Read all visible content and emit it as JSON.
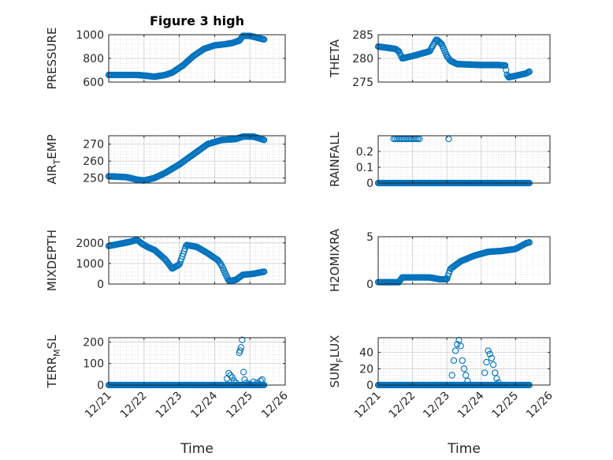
{
  "figure": {
    "title": "Figure 3 high"
  },
  "style": {
    "marker_color": "#0072BD",
    "axis_color": "#262626",
    "grid_color": "#dcdcdc",
    "background": "#ffffff"
  },
  "chart_data": [
    {
      "type": "scatter",
      "id": "pressure",
      "col": 0,
      "row": 0,
      "ylabel_parts": [
        {
          "t": "PRESSURE"
        }
      ],
      "title": "Figure 3 high",
      "xlim": [
        0,
        5
      ],
      "ylim": [
        600,
        1000
      ],
      "yticks": [
        600,
        800,
        1000
      ],
      "ytick_labels": [
        "600",
        "800",
        "1000"
      ],
      "x_anchors": [
        0,
        0.8,
        1.0,
        1.3,
        1.6,
        1.8,
        2.1,
        2.4,
        2.7,
        3.0,
        3.3,
        3.5,
        3.7,
        3.8,
        4.0,
        4.2,
        4.4
      ],
      "y_anchors": [
        660,
        660,
        655,
        645,
        660,
        680,
        740,
        820,
        880,
        910,
        920,
        930,
        950,
        990,
        990,
        975,
        960
      ],
      "marker": "circle",
      "n_points": 170
    },
    {
      "type": "scatter",
      "id": "theta",
      "col": 1,
      "row": 0,
      "ylabel_parts": [
        {
          "t": "THETA"
        }
      ],
      "xlim": [
        0,
        5
      ],
      "ylim": [
        275,
        285
      ],
      "yticks": [
        275,
        280,
        285
      ],
      "ytick_labels": [
        "275",
        "280",
        "285"
      ],
      "x_anchors": [
        0,
        0.5,
        0.6,
        0.7,
        1.0,
        1.5,
        1.65,
        1.7,
        1.85,
        2.0,
        2.1,
        2.3,
        3.0,
        3.5,
        3.7,
        3.75,
        3.8,
        4.3,
        4.4
      ],
      "y_anchors": [
        282.5,
        282,
        281.5,
        280,
        280.5,
        281.5,
        283.5,
        284,
        283,
        280.5,
        279.5,
        278.8,
        278.6,
        278.6,
        278.5,
        276.5,
        276.0,
        276.8,
        277.2
      ],
      "marker": "circle",
      "n_points": 170
    },
    {
      "type": "scatter",
      "id": "air_temp",
      "col": 0,
      "row": 1,
      "ylabel_parts": [
        {
          "t": "AIR"
        },
        {
          "t": "T",
          "sub": true
        },
        {
          "t": "EMP"
        }
      ],
      "xlim": [
        0,
        5
      ],
      "ylim": [
        247,
        275
      ],
      "yticks": [
        250,
        260,
        270
      ],
      "ytick_labels": [
        "250",
        "260",
        "270"
      ],
      "x_anchors": [
        0,
        0.5,
        0.8,
        1.0,
        1.3,
        1.6,
        2.0,
        2.4,
        2.8,
        3.2,
        3.6,
        3.8,
        4.1,
        4.4
      ],
      "y_anchors": [
        251,
        250.5,
        249,
        248.5,
        250,
        253,
        258,
        264,
        270,
        272.5,
        273,
        274.5,
        274.5,
        272.5
      ],
      "marker": "circle",
      "n_points": 170
    },
    {
      "type": "scatter",
      "id": "rainfall",
      "col": 1,
      "row": 1,
      "ylabel_parts": [
        {
          "t": "RAINFALL"
        }
      ],
      "xlim": [
        0,
        5
      ],
      "ylim": [
        0,
        0.3
      ],
      "yticks": [
        0,
        0.1,
        0.2
      ],
      "ytick_labels": [
        "0",
        "0.1",
        "0.2"
      ],
      "x_anchors": [
        0,
        4.4
      ],
      "y_anchors": [
        0,
        0
      ],
      "extra_x": [
        0.45,
        0.5,
        0.55,
        0.6,
        0.65,
        0.7,
        0.75,
        0.8,
        0.85,
        0.9,
        0.95,
        1.0,
        1.05,
        1.1,
        1.15,
        1.2,
        2.05
      ],
      "extra_y": [
        0.28,
        0.28,
        0.28,
        0.28,
        0.28,
        0.28,
        0.28,
        0.28,
        0.28,
        0.28,
        0.28,
        0.28,
        0.28,
        0.28,
        0.28,
        0.28,
        0.28
      ],
      "marker": "circle",
      "n_points": 170
    },
    {
      "type": "scatter",
      "id": "mixdepth",
      "col": 0,
      "row": 2,
      "ylabel_parts": [
        {
          "t": "MIXDEPTH"
        }
      ],
      "xlim": [
        0,
        5
      ],
      "ylim": [
        0,
        2300
      ],
      "yticks": [
        0,
        1000,
        2000
      ],
      "ytick_labels": [
        "0",
        "1000",
        "2000"
      ],
      "x_anchors": [
        0,
        0.3,
        0.6,
        0.8,
        0.95,
        1.1,
        1.3,
        1.6,
        1.8,
        2.0,
        2.2,
        2.5,
        2.8,
        3.1,
        3.2,
        3.4,
        3.6,
        3.8,
        4.1,
        4.4
      ],
      "y_anchors": [
        1850,
        1950,
        2050,
        2150,
        1950,
        1800,
        1650,
        1200,
        750,
        950,
        1900,
        1800,
        1500,
        1150,
        900,
        150,
        200,
        450,
        500,
        600
      ],
      "marker": "circle",
      "n_points": 170
    },
    {
      "type": "scatter",
      "id": "h2omixra",
      "col": 1,
      "row": 2,
      "ylabel_parts": [
        {
          "t": "H2OMIXRA"
        }
      ],
      "xlim": [
        0,
        5
      ],
      "ylim": [
        0,
        5
      ],
      "yticks": [
        0,
        5
      ],
      "ytick_labels": [
        "0",
        "5"
      ],
      "x_anchors": [
        0,
        0.6,
        0.7,
        1.5,
        1.8,
        2.0,
        2.1,
        2.4,
        2.8,
        3.2,
        3.6,
        4.0,
        4.3,
        4.4
      ],
      "y_anchors": [
        0.2,
        0.2,
        0.7,
        0.7,
        0.5,
        0.5,
        1.6,
        2.4,
        3.0,
        3.4,
        3.5,
        3.7,
        4.3,
        4.4
      ],
      "marker": "circle",
      "n_points": 170
    },
    {
      "type": "scatter",
      "id": "terr_msl",
      "col": 0,
      "row": 3,
      "ylabel_parts": [
        {
          "t": "TERR"
        },
        {
          "t": "M",
          "sub": true
        },
        {
          "t": "SL"
        }
      ],
      "xlim": [
        0,
        5
      ],
      "ylim": [
        0,
        220
      ],
      "yticks": [
        0,
        100,
        200
      ],
      "ytick_labels": [
        "0",
        "100",
        "200"
      ],
      "x_anchors": [
        0,
        4.4
      ],
      "y_anchors": [
        0,
        0
      ],
      "extra_x": [
        3.35,
        3.4,
        3.45,
        3.5,
        3.55,
        3.6,
        3.7,
        3.72,
        3.75,
        3.78,
        3.82,
        3.85,
        3.9,
        4.0,
        4.1,
        4.2,
        4.3,
        4.35
      ],
      "extra_y": [
        30,
        55,
        45,
        35,
        20,
        10,
        150,
        160,
        175,
        210,
        60,
        25,
        10,
        5,
        15,
        10,
        20,
        25
      ],
      "marker": "circle",
      "n_points": 170
    },
    {
      "type": "scatter",
      "id": "sun_flux",
      "col": 1,
      "row": 3,
      "ylabel_parts": [
        {
          "t": "SUN"
        },
        {
          "t": "F",
          "sub": true
        },
        {
          "t": "LUX"
        }
      ],
      "xlim": [
        0,
        5
      ],
      "ylim": [
        0,
        58
      ],
      "yticks": [
        0,
        20,
        40
      ],
      "ytick_labels": [
        "0",
        "20",
        "40"
      ],
      "x_anchors": [
        0,
        4.4
      ],
      "y_anchors": [
        0,
        0
      ],
      "extra_x": [
        2.15,
        2.2,
        2.25,
        2.3,
        2.35,
        2.4,
        2.45,
        2.5,
        2.55,
        2.6,
        3.1,
        3.15,
        3.2,
        3.25,
        3.3,
        3.35,
        3.4,
        3.45,
        3.5
      ],
      "extra_y": [
        12,
        30,
        42,
        50,
        55,
        48,
        30,
        20,
        12,
        5,
        15,
        28,
        42,
        38,
        33,
        25,
        15,
        8,
        3
      ],
      "marker": "circle",
      "n_points": 170
    }
  ],
  "xaxis": {
    "xlabel": "Time",
    "ticks": [
      0,
      1,
      2,
      3,
      4,
      5
    ],
    "tick_labels": [
      "12/21",
      "12/22",
      "12/23",
      "12/24",
      "12/25",
      "12/26"
    ]
  }
}
